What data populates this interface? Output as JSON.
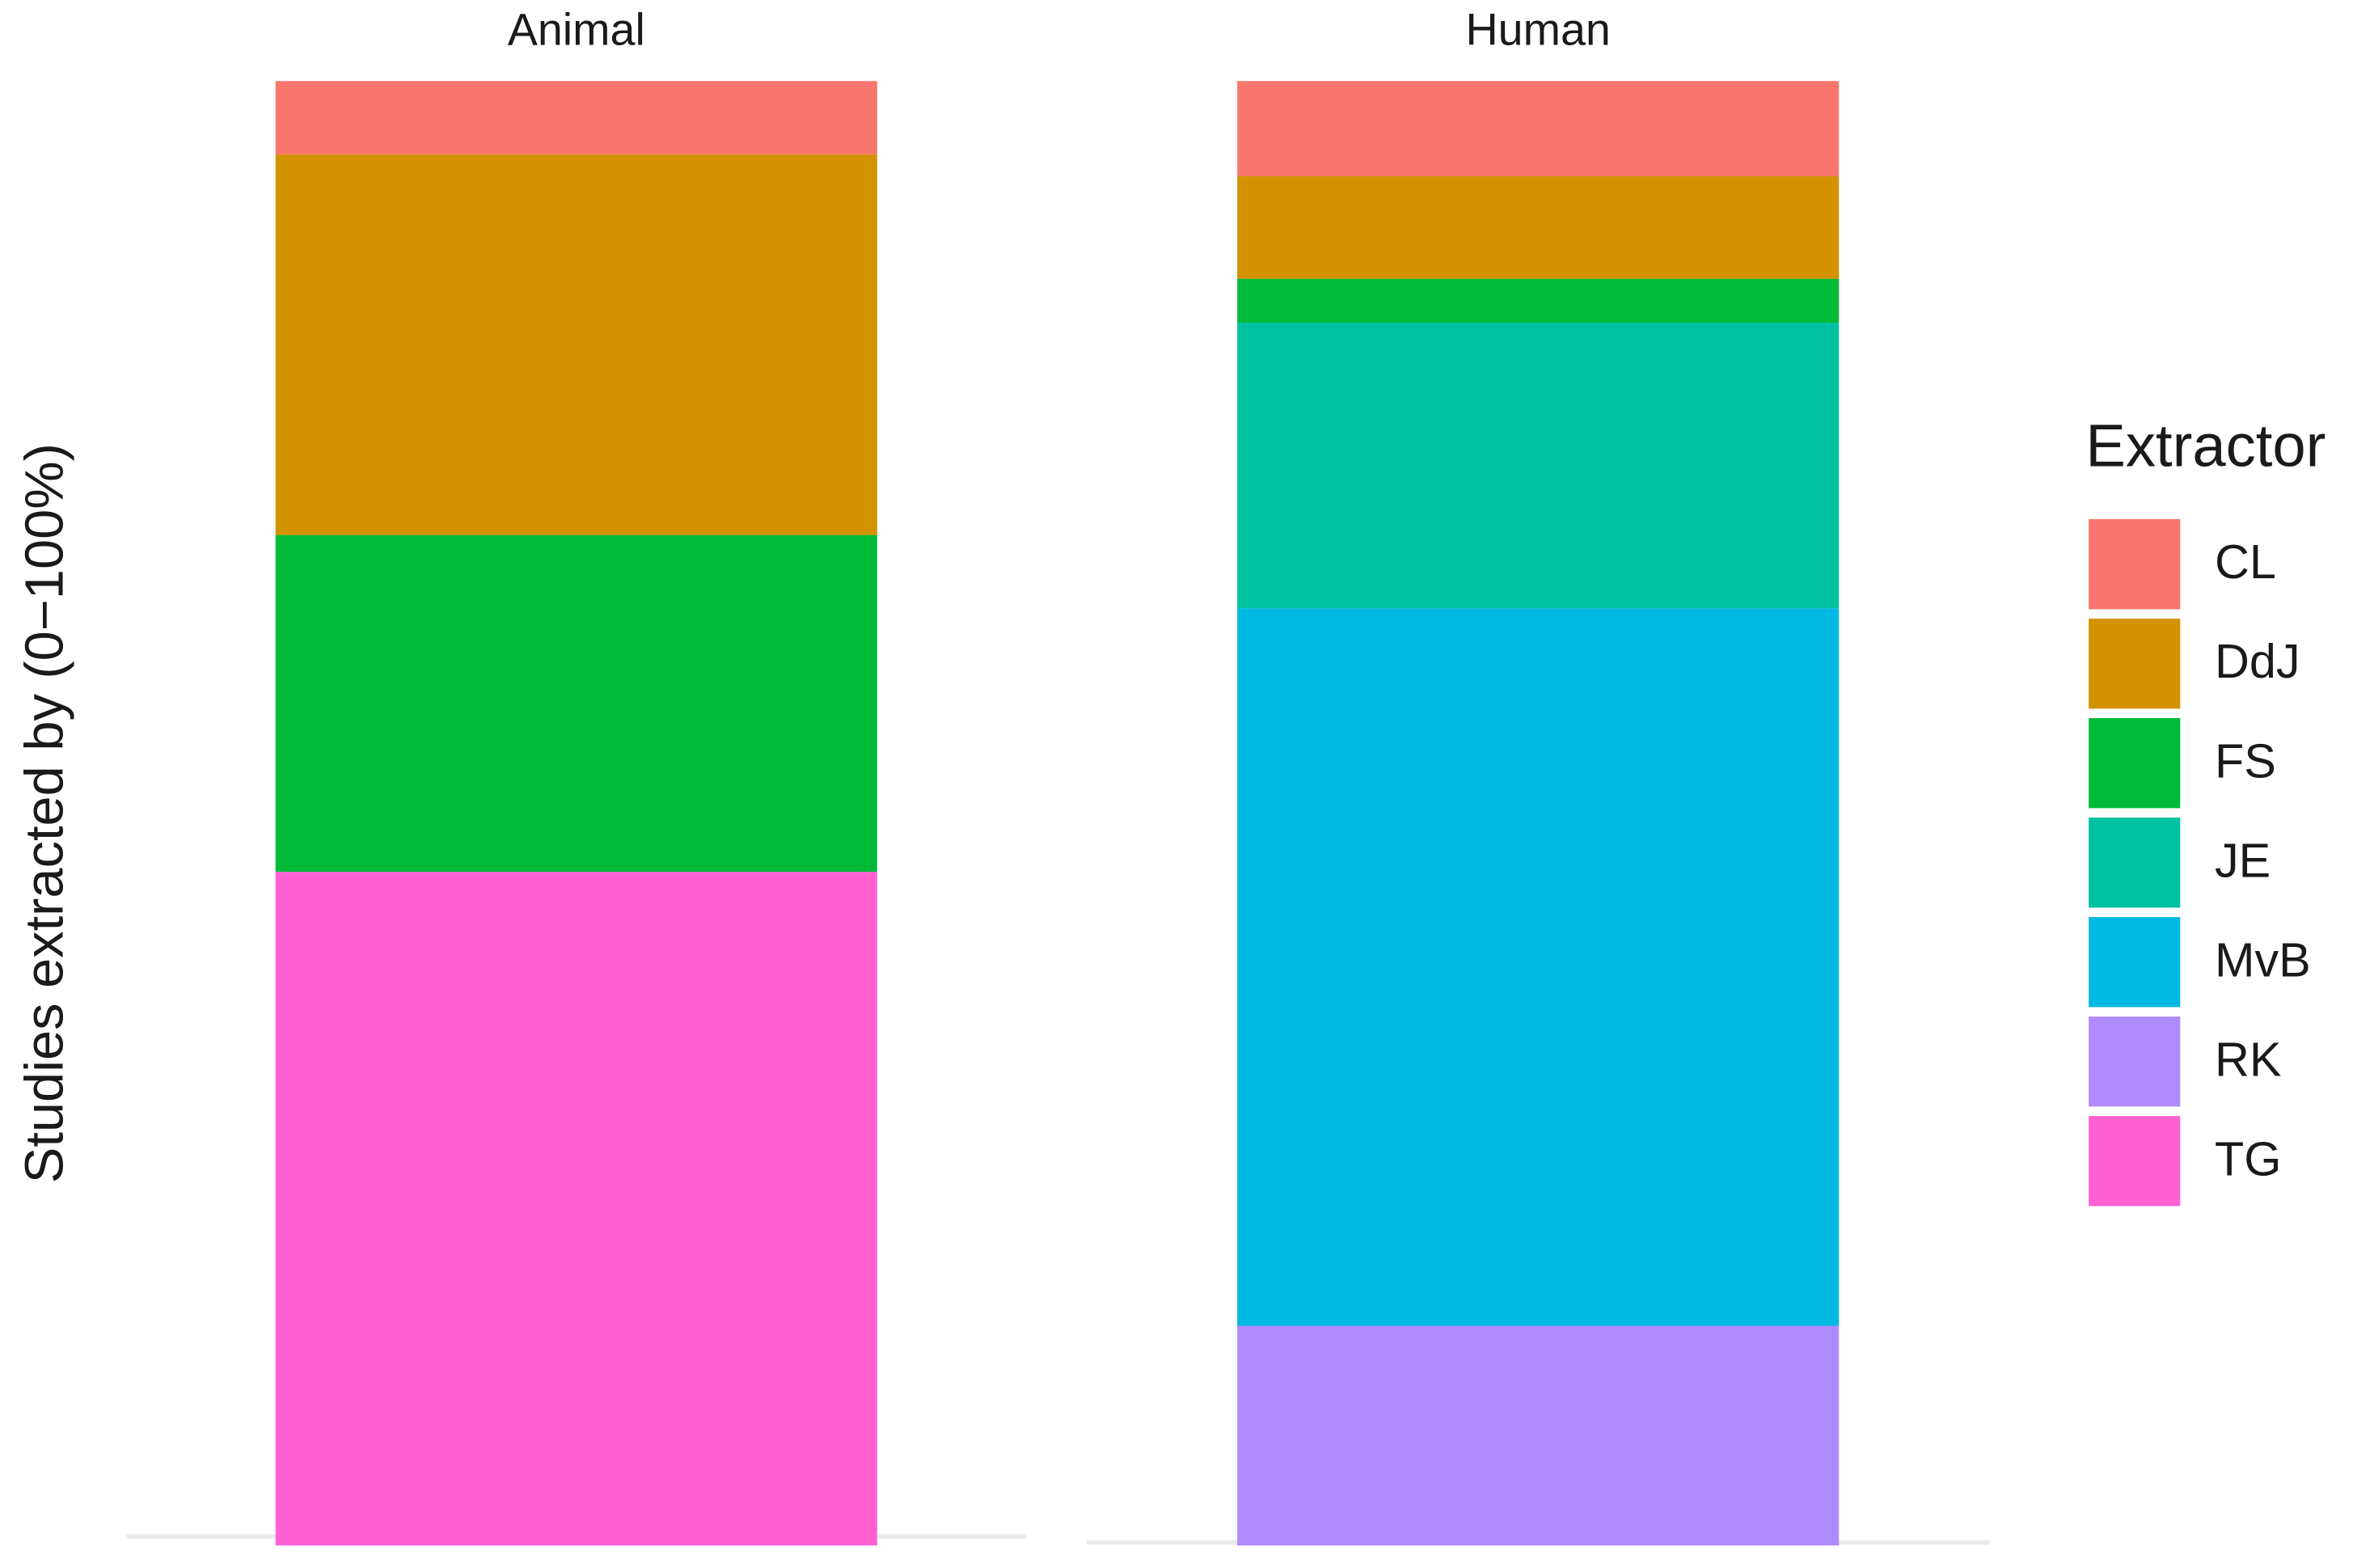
{
  "chart_data": {
    "type": "bar",
    "stacked": true,
    "y_label": "Studies extracted by (0−100%)",
    "categories": [
      "Animal",
      "Human"
    ],
    "ylim": [
      0,
      100
    ],
    "legend_title": "Extractor",
    "legend_position": "right",
    "series": [
      {
        "name": "CL",
        "color": "#f8766d",
        "values": [
          5,
          6.5
        ]
      },
      {
        "name": "DdJ",
        "color": "#d39200",
        "values": [
          26,
          7
        ]
      },
      {
        "name": "FS",
        "color": "#00ba38",
        "values": [
          23,
          3
        ]
      },
      {
        "name": "JE",
        "color": "#00c19f",
        "values": [
          null,
          19.5
        ]
      },
      {
        "name": "MvB",
        "color": "#00b9e3",
        "values": [
          null,
          49
        ]
      },
      {
        "name": "RK",
        "color": "#b08bff",
        "values": [
          null,
          15
        ]
      },
      {
        "name": "TG",
        "color": "#ff61d3",
        "values": [
          46,
          null
        ]
      }
    ]
  }
}
